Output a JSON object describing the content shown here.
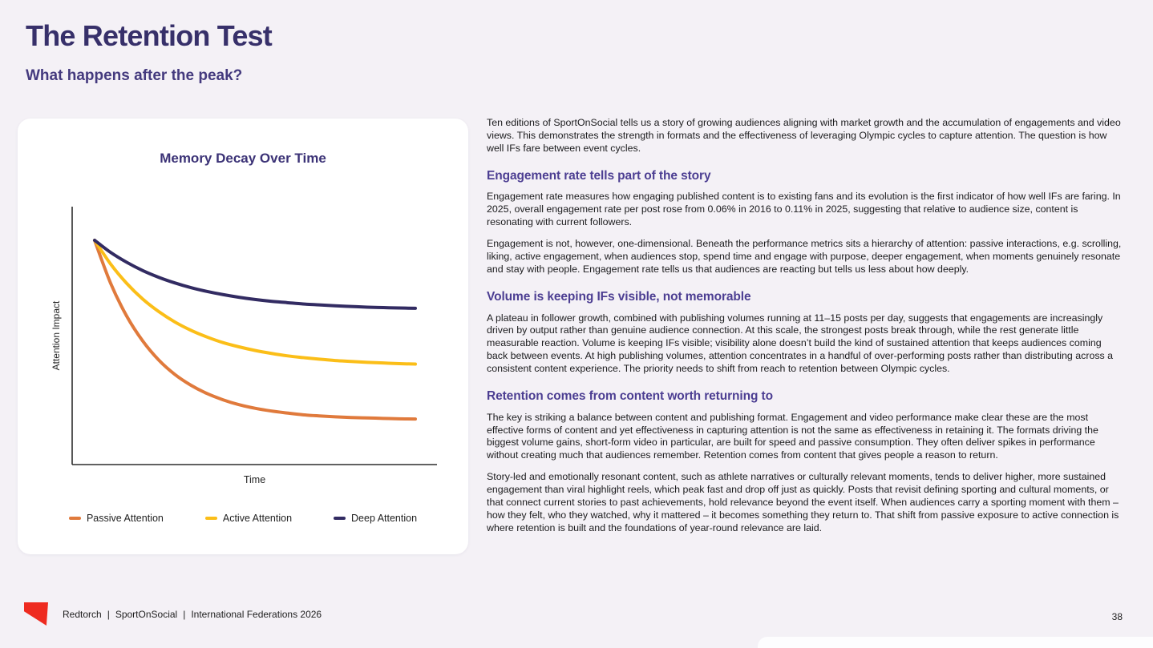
{
  "page": {
    "title": "The Retention Test",
    "subtitle": "What happens after the peak?",
    "page_number": "38"
  },
  "chart_data": {
    "type": "line",
    "title": "Memory Decay Over Time",
    "xlabel": "Time",
    "ylabel": "Attention Impact",
    "grid": false,
    "axis_ticks": false,
    "legend_position": "bottom",
    "ylim": [
      0,
      115
    ],
    "x": [
      0,
      0.5,
      1,
      1.5,
      2,
      2.5,
      3,
      3.5,
      4,
      4.5,
      5,
      5.5,
      6,
      6.5,
      7,
      7.5,
      8,
      8.5,
      9,
      9.5,
      10
    ],
    "series": [
      {
        "name": "Passive Attention",
        "color": "#E07A3C",
        "values": [
          100,
          80.8,
          66.2,
          55.1,
          46.6,
          40.2,
          35.4,
          31.7,
          28.9,
          26.7,
          25.1,
          23.9,
          23.0,
          22.2,
          21.7,
          21.3,
          21.0,
          20.8,
          20.6,
          20.4,
          20.3
        ]
      },
      {
        "name": "Active Attention",
        "color": "#FBBE18",
        "values": [
          100,
          89.4,
          80.8,
          73.8,
          68.2,
          63.6,
          59.9,
          56.9,
          54.4,
          52.5,
          50.9,
          49.6,
          48.5,
          47.7,
          47.0,
          46.4,
          46.0,
          45.6,
          45.3,
          45.0,
          44.8
        ]
      },
      {
        "name": "Deep Attention",
        "color": "#322B62",
        "values": [
          100,
          94.6,
          90.2,
          86.5,
          83.5,
          81.0,
          78.9,
          77.2,
          75.8,
          74.6,
          73.6,
          72.8,
          72.2,
          71.6,
          71.2,
          70.8,
          70.5,
          70.2,
          70.0,
          69.8,
          69.7
        ]
      }
    ]
  },
  "article": {
    "intro": "Ten editions of SportOnSocial tells us a story of growing audiences aligning with market growth and the accumulation of engagements and video views. This demonstrates the strength in formats and the effectiveness of leveraging Olympic cycles to capture attention. The question is how well IFs fare between event cycles.",
    "sections": [
      {
        "heading": "Engagement rate tells part of the story",
        "paragraphs": [
          "Engagement rate measures how engaging published content is to existing fans and its evolution is the first indicator of how well IFs are faring. In 2025, overall engagement rate per post rose from 0.06% in 2016 to 0.11% in 2025, suggesting that relative to audience size, content is resonating with current followers.",
          "Engagement is not, however, one-dimensional. Beneath the performance metrics sits a hierarchy of attention: passive interactions, e.g. scrolling, liking, active engagement, when audiences stop, spend time and engage with purpose, deeper engagement, when moments genuinely resonate and stay with people. Engagement rate tells us that audiences are reacting but tells us less about how deeply."
        ]
      },
      {
        "heading": "Volume is keeping IFs visible, not memorable",
        "paragraphs": [
          "A plateau in follower growth, combined with publishing volumes running at 11–15 posts per day, suggests that engagements are increasingly driven by output rather than genuine audience connection. At this scale, the strongest posts break through, while the rest generate little measurable reaction. Volume is keeping IFs visible; visibility alone doesn’t build the kind of sustained attention that keeps audiences coming back between events. At high publishing volumes, attention concentrates in a handful of over-performing posts rather than distributing across a consistent content experience. The priority needs to shift from reach to retention between Olympic cycles."
        ]
      },
      {
        "heading": "Retention comes from content worth returning to",
        "paragraphs": [
          "The key is striking a balance between content and publishing format. Engagement and video performance make clear these are the most effective forms of content and yet effectiveness in capturing attention is not the same as effectiveness in retaining it. The formats driving the biggest volume gains, short-form video in particular, are built for speed and passive consumption. They often deliver spikes in performance without creating much that audiences remember. Retention comes from content that gives people a reason to return.",
          "Story-led and emotionally resonant content, such as athlete narratives or culturally relevant moments, tends to deliver higher, more sustained engagement than viral highlight reels, which peak fast and drop off just as quickly. Posts that revisit defining sporting and cultural moments, or that connect current stories to past achievements, hold relevance beyond the event itself. When audiences carry a sporting moment with them – how they felt, who they watched, why it mattered – it becomes something they return to. That shift from passive exposure to active connection is where retention is built and the foundations of year-round relevance are laid."
        ]
      }
    ]
  },
  "footer": {
    "items": [
      "Redtorch",
      "SportOnSocial",
      "International Federations 2026"
    ],
    "separator": "|"
  },
  "colors": {
    "background": "#F4F1F6",
    "card": "#FFFFFF",
    "title": "#37306A",
    "heading": "#4C3E92",
    "body_text": "#1B1B1D",
    "axis": "#2D2D2D",
    "logo_red": "#EE2B20",
    "series_passive": "#E07A3C",
    "series_active": "#FBBE18",
    "series_deep": "#322B62"
  }
}
